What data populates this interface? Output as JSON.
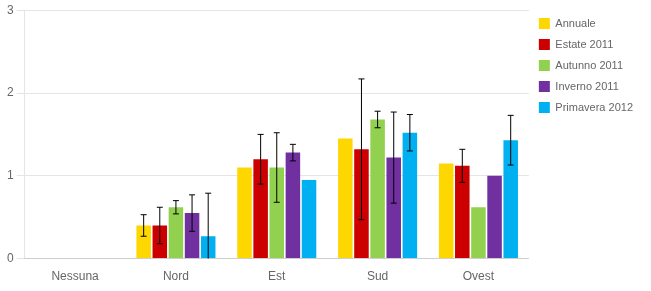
{
  "chart_data": {
    "type": "bar",
    "categories": [
      "Nessuna",
      "Nord",
      "Est",
      "Sud",
      "Ovest"
    ],
    "series": [
      {
        "name": "Annuale",
        "color": "#FFD700",
        "values": [
          0.0,
          0.4,
          1.1,
          1.45,
          1.15
        ],
        "errors": [
          0.0,
          0.13,
          0.0,
          0.0,
          0.0
        ]
      },
      {
        "name": "Estate 2011",
        "color": "#CC0000",
        "values": [
          0.0,
          0.4,
          1.2,
          1.32,
          1.12
        ],
        "errors": [
          0.0,
          0.22,
          0.3,
          0.85,
          0.2
        ]
      },
      {
        "name": "Autunno 2011",
        "color": "#92D050",
        "values": [
          0.0,
          0.62,
          1.1,
          1.68,
          0.62
        ],
        "errors": [
          0.0,
          0.08,
          0.42,
          0.1,
          0.0
        ]
      },
      {
        "name": "Inverno 2011",
        "color": "#7030A0",
        "values": [
          0.0,
          0.55,
          1.28,
          1.22,
          1.0
        ],
        "errors": [
          0.0,
          0.22,
          0.1,
          0.55,
          0.0
        ]
      },
      {
        "name": "Primavera 2012",
        "color": "#00B0F0",
        "values": [
          0.0,
          0.27,
          0.95,
          1.52,
          1.43
        ],
        "errors": [
          0.0,
          0.52,
          0.0,
          0.22,
          0.3
        ]
      }
    ],
    "ylim": [
      0,
      3
    ],
    "yticks": [
      0,
      1,
      2,
      3
    ],
    "grid": true,
    "legend": "right"
  }
}
